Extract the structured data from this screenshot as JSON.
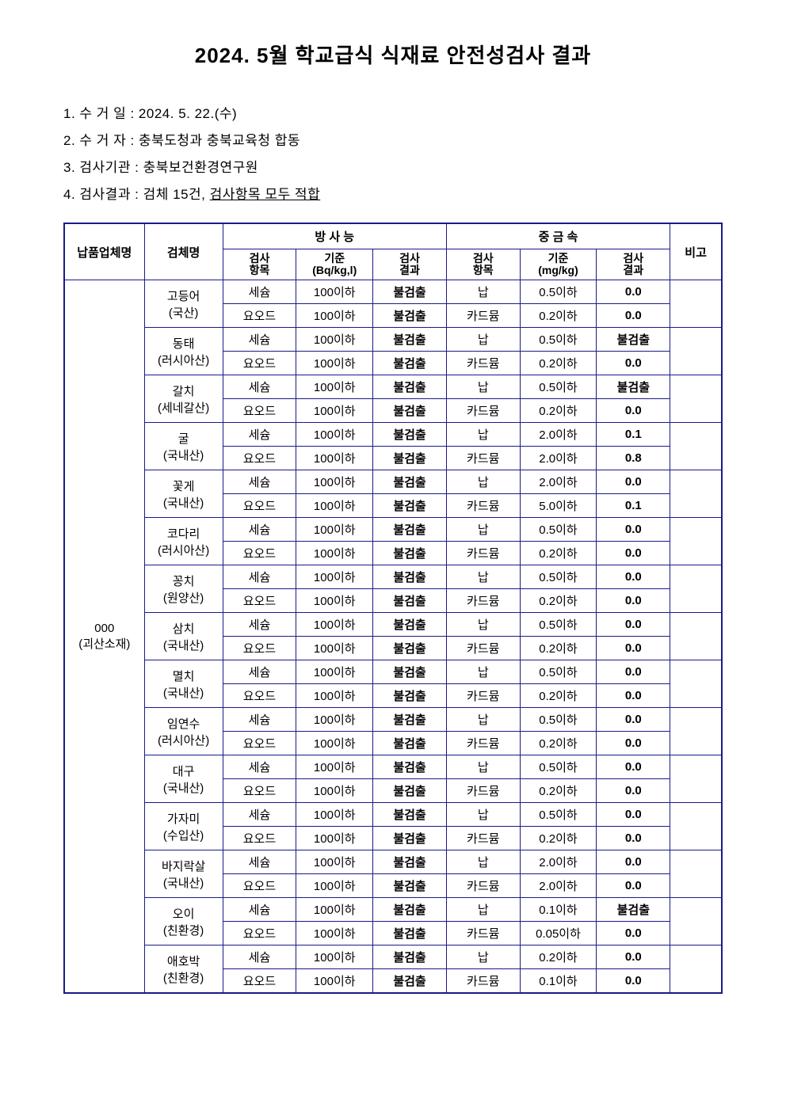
{
  "title": "2024. 5월 학교급식 식재료 안전성검사 결과",
  "meta": {
    "line1": "1. 수 거 일 : 2024. 5. 22.(수)",
    "line2": "2. 수 거 자 : 충북도청과 충북교육청 합동",
    "line3": "3. 검사기관 : 충북보건환경연구원",
    "line4_prefix": "4. 검사결과 : 검체 15건, ",
    "line4_underlined": "검사항목 모두 적합"
  },
  "headers": {
    "supplier": "납품업체명",
    "sample": "검체명",
    "rad_group": "방 사 능",
    "metal_group": "중 금 속",
    "remark": "비고",
    "test_item": "검사\n항목",
    "rad_std": "기준\n(Bq/kg,l)",
    "test_result": "검사\n결과",
    "metal_std": "기준\n(mg/kg)"
  },
  "supplier": {
    "name": "000",
    "loc": "(괴산소재)"
  },
  "samples": [
    {
      "l1": "고등어",
      "l2": "(국산)"
    },
    {
      "l1": "동태",
      "l2": "(러시아산)"
    },
    {
      "l1": "갈치",
      "l2": "(세네갈산)"
    },
    {
      "l1": "굴",
      "l2": "(국내산)"
    },
    {
      "l1": "꽃게",
      "l2": "(국내산)"
    },
    {
      "l1": "코다리",
      "l2": "(러시아산)"
    },
    {
      "l1": "꽁치",
      "l2": "(원양산)"
    },
    {
      "l1": "삼치",
      "l2": "(국내산)"
    },
    {
      "l1": "멸치",
      "l2": "(국내산)"
    },
    {
      "l1": "임연수",
      "l2": "(러시아산)"
    },
    {
      "l1": "대구",
      "l2": "(국내산)"
    },
    {
      "l1": "가자미",
      "l2": "(수입산)"
    },
    {
      "l1": "바지락살",
      "l2": "(국내산)"
    },
    {
      "l1": "오이",
      "l2": "(친환경)"
    },
    {
      "l1": "애호박",
      "l2": "(친환경)"
    }
  ],
  "rad_rows": [
    {
      "item": "세슘",
      "std": "100이하",
      "res": "불검출"
    },
    {
      "item": "요오드",
      "std": "100이하",
      "res": "불검출"
    }
  ],
  "metal_data": [
    {
      "pb_std": "0.5이하",
      "pb_res": "0.0",
      "cd_std": "0.2이하",
      "cd_res": "0.0"
    },
    {
      "pb_std": "0.5이하",
      "pb_res": "불검출",
      "cd_std": "0.2이하",
      "cd_res": "0.0"
    },
    {
      "pb_std": "0.5이하",
      "pb_res": "불검출",
      "cd_std": "0.2이하",
      "cd_res": "0.0"
    },
    {
      "pb_std": "2.0이하",
      "pb_res": "0.1",
      "cd_std": "2.0이하",
      "cd_res": "0.8"
    },
    {
      "pb_std": "2.0이하",
      "pb_res": "0.0",
      "cd_std": "5.0이하",
      "cd_res": "0.1"
    },
    {
      "pb_std": "0.5이하",
      "pb_res": "0.0",
      "cd_std": "0.2이하",
      "cd_res": "0.0"
    },
    {
      "pb_std": "0.5이하",
      "pb_res": "0.0",
      "cd_std": "0.2이하",
      "cd_res": "0.0"
    },
    {
      "pb_std": "0.5이하",
      "pb_res": "0.0",
      "cd_std": "0.2이하",
      "cd_res": "0.0"
    },
    {
      "pb_std": "0.5이하",
      "pb_res": "0.0",
      "cd_std": "0.2이하",
      "cd_res": "0.0"
    },
    {
      "pb_std": "0.5이하",
      "pb_res": "0.0",
      "cd_std": "0.2이하",
      "cd_res": "0.0"
    },
    {
      "pb_std": "0.5이하",
      "pb_res": "0.0",
      "cd_std": "0.2이하",
      "cd_res": "0.0"
    },
    {
      "pb_std": "0.5이하",
      "pb_res": "0.0",
      "cd_std": "0.2이하",
      "cd_res": "0.0"
    },
    {
      "pb_std": "2.0이하",
      "pb_res": "0.0",
      "cd_std": "2.0이하",
      "cd_res": "0.0"
    },
    {
      "pb_std": "0.1이하",
      "pb_res": "불검출",
      "cd_std": "0.05이하",
      "cd_res": "0.0"
    },
    {
      "pb_std": "0.2이하",
      "pb_res": "0.0",
      "cd_std": "0.1이하",
      "cd_res": "0.0"
    }
  ],
  "metal_labels": {
    "pb": "납",
    "cd": "카드뮴"
  }
}
